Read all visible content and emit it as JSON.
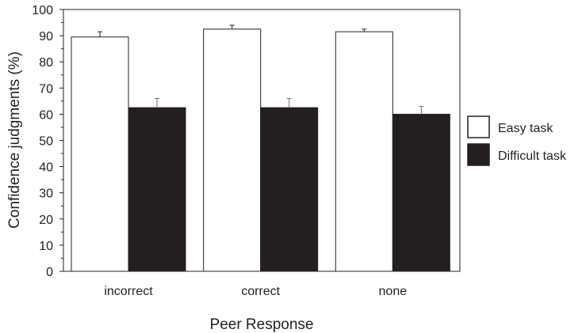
{
  "chart_data": {
    "type": "bar",
    "xlabel": "Peer Response",
    "ylabel": "Confidence judgments (%)",
    "ylim": [
      0,
      100
    ],
    "yticks": [
      0,
      10,
      20,
      30,
      40,
      50,
      60,
      70,
      80,
      90,
      100
    ],
    "categories": [
      "incorrect",
      "correct",
      "none"
    ],
    "series": [
      {
        "name": "Easy task",
        "values": [
          89.5,
          92.5,
          91.5
        ],
        "errors": [
          2,
          1.5,
          1
        ],
        "color": "#ffffff"
      },
      {
        "name": "Difficult task",
        "values": [
          62.5,
          62.5,
          60
        ],
        "errors": [
          3.5,
          3.5,
          3
        ],
        "color": "#231f20"
      }
    ],
    "grid": false,
    "legend": "right"
  }
}
